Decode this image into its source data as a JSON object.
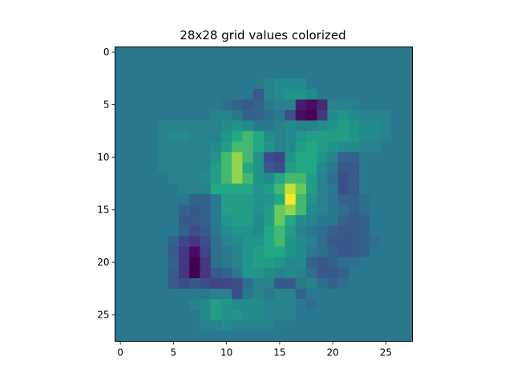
{
  "chart_data": {
    "type": "heatmap",
    "title": "28x28 grid values colorized",
    "xlabel": "",
    "ylabel": "",
    "colormap": "viridis",
    "value_range": [
      -1.0,
      1.0
    ],
    "x_ticks": [
      0,
      5,
      10,
      15,
      20,
      25
    ],
    "y_ticks": [
      0,
      5,
      10,
      15,
      20,
      25
    ],
    "xlim": [
      -0.5,
      27.5
    ],
    "ylim": [
      27.5,
      -0.5
    ],
    "grid": false,
    "rows": [
      [
        0,
        0,
        0,
        0,
        0,
        0,
        0,
        0,
        0,
        0,
        0,
        0,
        0,
        0,
        0,
        0,
        0,
        0,
        0,
        0,
        0,
        0,
        0,
        0,
        0,
        0,
        0,
        0
      ],
      [
        0,
        0,
        0,
        0,
        0,
        0,
        0,
        0,
        0,
        0,
        0,
        0,
        0,
        0,
        0,
        0,
        0,
        0,
        0,
        0,
        0,
        0,
        0,
        0,
        0,
        0,
        0,
        0
      ],
      [
        0,
        0,
        0,
        0,
        0,
        0,
        0,
        0,
        0,
        0,
        0,
        0,
        0,
        0,
        0,
        0,
        0,
        0,
        0,
        0,
        0,
        0,
        0,
        0,
        0,
        0,
        0,
        0
      ],
      [
        0,
        0,
        0,
        0,
        0,
        0,
        0,
        0,
        0,
        0,
        0,
        0,
        0,
        0,
        0.1,
        0.2,
        0.2,
        0.2,
        0,
        0,
        0,
        0,
        0,
        0,
        0,
        0,
        0,
        0
      ],
      [
        0,
        0,
        0,
        0,
        0,
        0,
        0,
        0,
        0,
        0,
        0,
        0,
        0,
        -0.3,
        0.1,
        0.2,
        0.3,
        0.3,
        0.2,
        0,
        0,
        0,
        0,
        0,
        0,
        0,
        0,
        0
      ],
      [
        0,
        0,
        0,
        0,
        0,
        0,
        0,
        0,
        0,
        0,
        -0.1,
        -0.2,
        -0.3,
        -0.2,
        0,
        0.1,
        0.1,
        -0.8,
        -0.9,
        -0.7,
        0.1,
        0.1,
        0.1,
        0,
        0,
        0,
        0,
        0
      ],
      [
        0,
        0,
        0,
        0,
        0,
        0,
        0,
        0,
        0,
        0.1,
        0.1,
        0,
        -0.2,
        -0.2,
        -0.1,
        0,
        -0.4,
        -0.9,
        -1.0,
        -0.6,
        0.2,
        0.3,
        0.2,
        0.1,
        0.1,
        0.1,
        0,
        0
      ],
      [
        0,
        0,
        0,
        0,
        0.1,
        0.1,
        0.1,
        0.1,
        0.1,
        0.1,
        0.2,
        0.3,
        0.2,
        0,
        0,
        0.1,
        0.2,
        0.1,
        0.1,
        0.2,
        0.3,
        0.4,
        0.3,
        0.2,
        0.2,
        0.1,
        0,
        0
      ],
      [
        0,
        0,
        0,
        0,
        0.1,
        0.2,
        0.2,
        0.1,
        0.1,
        0.1,
        0.3,
        0.5,
        0.6,
        0.5,
        0.2,
        0.1,
        0.2,
        0.3,
        0.4,
        0.4,
        0.4,
        0.4,
        0.3,
        0.2,
        0.2,
        0.1,
        0,
        0
      ],
      [
        0,
        0,
        0,
        0,
        0.1,
        0.1,
        0.1,
        0.1,
        0.1,
        0.2,
        0.4,
        0.6,
        0.6,
        0.5,
        0.3,
        0.1,
        0.2,
        0.4,
        0.5,
        0.4,
        0.3,
        0.2,
        0.2,
        0.1,
        0.1,
        0,
        0,
        0
      ],
      [
        0,
        0,
        0,
        0,
        0.1,
        0.1,
        0.1,
        0.1,
        0.1,
        0.3,
        0.6,
        0.8,
        0.6,
        0.3,
        -0.4,
        -0.5,
        0.3,
        0.5,
        0.5,
        0.3,
        0.1,
        -0.2,
        -0.2,
        0,
        0,
        0,
        0,
        0
      ],
      [
        0,
        0,
        0,
        0,
        0.1,
        0.1,
        0.1,
        0.1,
        0.1,
        0.4,
        0.6,
        0.8,
        0.5,
        0.3,
        -0.3,
        -0.4,
        0.4,
        0.5,
        0.5,
        0.2,
        0,
        -0.3,
        -0.3,
        0,
        0,
        0,
        0,
        0
      ],
      [
        0,
        0,
        0,
        0,
        0,
        0.1,
        0.1,
        0.1,
        0.2,
        0.4,
        0.6,
        0.8,
        0.6,
        0.3,
        0.2,
        0.5,
        0.6,
        0.6,
        0.4,
        0.1,
        -0.1,
        -0.4,
        -0.3,
        0,
        0,
        0,
        0,
        0
      ],
      [
        0,
        0,
        0,
        0,
        0,
        0,
        0.1,
        0.1,
        0.1,
        0.5,
        0.5,
        0.5,
        0.5,
        0.3,
        0.4,
        0.6,
        0.9,
        0.7,
        0.4,
        0.1,
        0,
        -0.4,
        -0.3,
        0,
        0,
        0,
        0,
        0
      ],
      [
        0,
        0,
        0,
        0,
        0,
        0,
        0,
        -0.2,
        -0.2,
        0,
        0.4,
        0.4,
        0.4,
        0.3,
        0.3,
        0.5,
        1.0,
        0.6,
        0.3,
        0.1,
        0,
        -0.2,
        -0.2,
        -0.1,
        0,
        0,
        0,
        0
      ],
      [
        0,
        0,
        0,
        0,
        0,
        0,
        -0.2,
        -0.3,
        -0.2,
        0,
        0.4,
        0.4,
        0.4,
        0.3,
        0.4,
        0.7,
        0.8,
        0.6,
        0.2,
        0.1,
        0,
        -0.1,
        -0.2,
        -0.1,
        0,
        0,
        0,
        0
      ],
      [
        0,
        0,
        0,
        0,
        0,
        0,
        -0.3,
        -0.3,
        -0.2,
        0,
        0.3,
        0.4,
        0.4,
        0.2,
        0.4,
        0.7,
        0.5,
        0.2,
        0.1,
        0,
        0,
        -0.2,
        -0.3,
        -0.2,
        0,
        0,
        0,
        0
      ],
      [
        0,
        0,
        0,
        0,
        0,
        0,
        -0.2,
        -0.4,
        -0.3,
        0,
        0.2,
        0.3,
        0.3,
        0.2,
        0.5,
        0.6,
        0.4,
        0.1,
        0,
        -0.1,
        -0.2,
        -0.3,
        -0.3,
        -0.2,
        0,
        0,
        0,
        0
      ],
      [
        0,
        0,
        0,
        0,
        0,
        -0.2,
        -0.5,
        -0.6,
        -0.4,
        -0.1,
        0.1,
        0.2,
        0.3,
        0.3,
        0.5,
        0.6,
        0.3,
        0.2,
        0.1,
        -0.1,
        -0.3,
        -0.3,
        -0.3,
        -0.2,
        -0.1,
        0,
        0,
        0
      ],
      [
        0,
        0,
        0,
        0,
        0,
        -0.3,
        -0.6,
        -0.9,
        -0.5,
        -0.1,
        0,
        0.1,
        0.3,
        0.4,
        0.5,
        0.5,
        0.3,
        0.2,
        0,
        -0.1,
        -0.2,
        -0.3,
        -0.3,
        -0.2,
        0,
        0,
        0,
        0
      ],
      [
        0,
        0,
        0,
        0,
        0,
        -0.2,
        -0.6,
        -1.0,
        -0.6,
        -0.1,
        0,
        0.1,
        0.3,
        0.4,
        0.4,
        0.3,
        0.2,
        0.2,
        -0.2,
        -0.3,
        -0.2,
        -0.1,
        -0.1,
        0,
        0,
        0,
        0,
        0
      ],
      [
        0,
        0,
        0,
        0,
        0,
        -0.3,
        -0.6,
        -1.0,
        -0.6,
        -0.3,
        -0.2,
        0,
        0.3,
        0.3,
        0.2,
        0.1,
        0.2,
        0.1,
        -0.1,
        -0.3,
        -0.3,
        -0.2,
        0,
        0,
        0,
        0,
        0,
        0
      ],
      [
        0,
        0,
        0,
        0,
        0,
        -0.3,
        -0.4,
        -0.3,
        -0.4,
        -0.5,
        -0.5,
        -0.4,
        -0.1,
        0.1,
        0.1,
        -0.3,
        -0.3,
        0,
        0.1,
        -0.1,
        -0.2,
        -0.1,
        0,
        0,
        0,
        0,
        0,
        0
      ],
      [
        0,
        0,
        0,
        0,
        0,
        0,
        0,
        0,
        0,
        0.1,
        0.1,
        -0.4,
        0,
        0.1,
        0,
        0.1,
        0.1,
        -0.2,
        0,
        0,
        0,
        0,
        0,
        0,
        0,
        0,
        0,
        0
      ],
      [
        0,
        0,
        0,
        0,
        0,
        0,
        0,
        0.1,
        0.2,
        0.4,
        0.3,
        0.2,
        0.2,
        0.2,
        0.1,
        0.1,
        0.1,
        0,
        -0.1,
        0,
        0,
        0,
        0,
        0,
        0,
        0,
        0,
        0
      ],
      [
        0,
        0,
        0,
        0,
        0,
        0,
        0,
        0,
        0.2,
        0.4,
        0.3,
        0.3,
        0.2,
        0.2,
        0.1,
        0.1,
        0.1,
        0,
        0,
        0,
        0,
        0,
        0,
        0,
        0,
        0,
        0,
        0
      ],
      [
        0,
        0,
        0,
        0,
        0,
        0,
        0,
        0,
        0.1,
        0.1,
        0.2,
        0.1,
        0.1,
        0.1,
        0.1,
        0,
        0,
        0,
        0,
        0,
        0,
        0,
        0,
        0,
        0,
        0,
        0,
        0
      ],
      [
        0,
        0,
        0,
        0,
        0,
        0,
        0,
        0,
        0,
        0,
        0,
        0,
        0,
        0,
        0,
        0,
        0,
        0,
        0,
        0,
        0,
        0,
        0,
        0,
        0,
        0,
        0,
        0
      ]
    ]
  }
}
